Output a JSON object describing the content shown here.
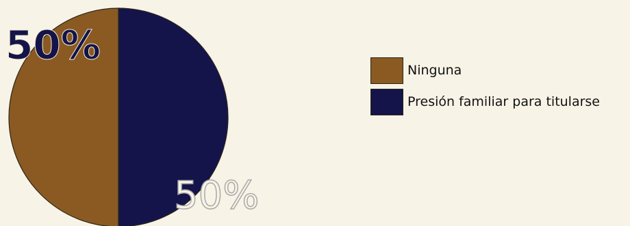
{
  "chart_data": {
    "type": "pie",
    "slices": [
      {
        "label": "Ninguna",
        "value": 50,
        "value_label": "50%",
        "color": "#8a5a22"
      },
      {
        "label": "Presión familiar para titularse",
        "value": 50,
        "value_label": "50%",
        "color": "#14144a"
      }
    ],
    "title": "",
    "legend_position": "right"
  },
  "colors": {
    "background": "#f7f3e6",
    "outline": "#2b2418"
  }
}
